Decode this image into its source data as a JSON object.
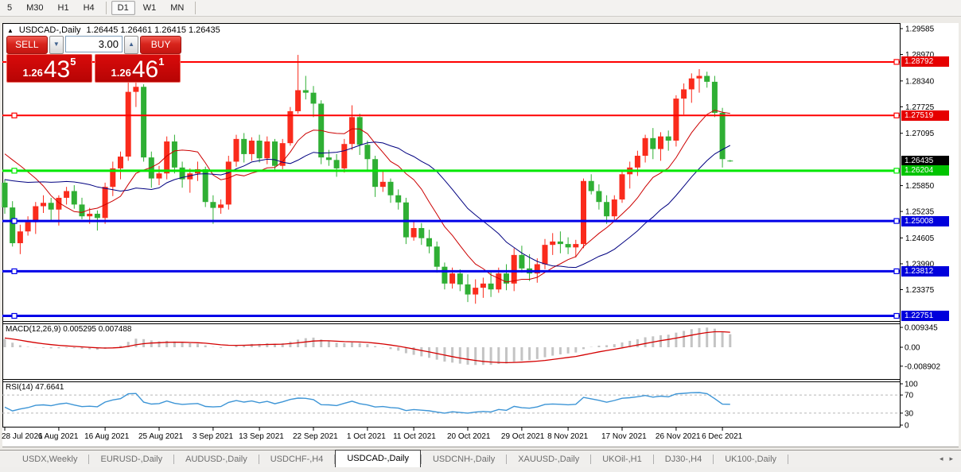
{
  "toolbar": {
    "timeframes": [
      {
        "label": "5",
        "active": false
      },
      {
        "label": "M30",
        "active": false
      },
      {
        "label": "H1",
        "active": false
      },
      {
        "label": "H4",
        "active": false
      },
      {
        "label": "D1",
        "active": true
      },
      {
        "label": "W1",
        "active": false
      },
      {
        "label": "MN",
        "active": false
      }
    ]
  },
  "chart_header": {
    "collapse_icon": "▲",
    "symbol_title": "USDCAD-,Daily",
    "ohlc": "1.26445 1.26461 1.26415 1.26435"
  },
  "trade_panel": {
    "sell_label": "SELL",
    "buy_label": "BUY",
    "volume": "3.00",
    "spin_down_icon": "▼",
    "spin_up_icon": "▲",
    "bid": {
      "small": "1.26",
      "big": "43",
      "sup": "5"
    },
    "ask": {
      "small": "1.26",
      "big": "46",
      "sup": "1"
    }
  },
  "indicator_labels": {
    "macd": "MACD(12,26,9) 0.005295 0.007488",
    "rsi": "RSI(14) 47.6641"
  },
  "tabs": {
    "scroll_left": "◂",
    "scroll_right": "▸",
    "items": [
      {
        "label": "USDX,Weekly",
        "active": false
      },
      {
        "label": "EURUSD-,Daily",
        "active": false
      },
      {
        "label": "AUDUSD-,Daily",
        "active": false
      },
      {
        "label": "USDCHF-,H4",
        "active": false
      },
      {
        "label": "USDCAD-,Daily",
        "active": true
      },
      {
        "label": "USDCNH-,Daily",
        "active": false
      },
      {
        "label": "XAUUSD-,Daily",
        "active": false
      },
      {
        "label": "UKOil-,H1",
        "active": false
      },
      {
        "label": "DJ30-,H4",
        "active": false
      },
      {
        "label": "UK100-,Daily",
        "active": false
      }
    ]
  },
  "chart_data": {
    "type": "candlestick",
    "symbol": "USDCAD-",
    "timeframe": "Daily",
    "current_ohlc": {
      "open": 1.26445,
      "high": 1.26461,
      "low": 1.26415,
      "close": 1.26435
    },
    "colors": {
      "up": "#FA2B1C",
      "down": "#2FAF34",
      "frame": "#000000"
    },
    "price_axis_ticks": [
      "1.29585",
      "1.28970",
      "1.28340",
      "1.27725",
      "1.27095",
      "1.25850",
      "1.25235",
      "1.24605",
      "1.23990",
      "1.23375"
    ],
    "price_badges": [
      {
        "text": "1.28792",
        "price": 1.28792,
        "color": "#E60000"
      },
      {
        "text": "1.27519",
        "price": 1.27519,
        "color": "#E60000"
      },
      {
        "text": "1.26435",
        "price": 1.26435,
        "color": "#000000"
      },
      {
        "text": "1.26204",
        "price": 1.26204,
        "color": "#00C400"
      },
      {
        "text": "1.25008",
        "price": 1.25008,
        "color": "#0000DC"
      },
      {
        "text": "1.23812",
        "price": 1.23812,
        "color": "#0000DC"
      },
      {
        "text": "1.22751",
        "price": 1.22751,
        "color": "#0000DC"
      }
    ],
    "horizontal_lines": [
      {
        "price": 1.28792,
        "color": "#FF0000",
        "width": 2
      },
      {
        "price": 1.27519,
        "color": "#FF0000",
        "width": 2
      },
      {
        "price": 1.26204,
        "color": "#00E800",
        "width": 3
      },
      {
        "price": 1.25008,
        "color": "#0000E8",
        "width": 3
      },
      {
        "price": 1.23812,
        "color": "#0000E8",
        "width": 3
      },
      {
        "price": 1.22751,
        "color": "#0000E8",
        "width": 3
      }
    ],
    "moving_averages": [
      {
        "period": 10,
        "color": "#CC0000"
      },
      {
        "period": 20,
        "color": "#000080"
      }
    ],
    "macd": {
      "params": "12,26,9",
      "value": 0.005295,
      "signal_value": 0.007488,
      "axis_ticks": [
        "0.009345",
        "0.00",
        "-0.008902"
      ],
      "bar_color": "#C4C4C4",
      "signal_color": "#D40000"
    },
    "rsi": {
      "period": 14,
      "value": 47.6641,
      "axis_ticks": [
        "100",
        "70",
        "30",
        "0"
      ],
      "levels": [
        70,
        30
      ],
      "color": "#3D95D6",
      "level_color": "#B8B8B8"
    },
    "x_labels": [
      {
        "index": 0,
        "text": "28 Jul 2021"
      },
      {
        "index": 7,
        "text": "6 Aug 2021"
      },
      {
        "index": 13,
        "text": "16 Aug 2021"
      },
      {
        "index": 20,
        "text": "25 Aug 2021"
      },
      {
        "index": 27,
        "text": "3 Sep 2021"
      },
      {
        "index": 33,
        "text": "13 Sep 2021"
      },
      {
        "index": 40,
        "text": "22 Sep 2021"
      },
      {
        "index": 47,
        "text": "1 Oct 2021"
      },
      {
        "index": 53,
        "text": "11 Oct 2021"
      },
      {
        "index": 60,
        "text": "20 Oct 2021"
      },
      {
        "index": 67,
        "text": "29 Oct 2021"
      },
      {
        "index": 73,
        "text": "8 Nov 2021"
      },
      {
        "index": 80,
        "text": "17 Nov 2021"
      },
      {
        "index": 87,
        "text": "26 Nov 2021"
      },
      {
        "index": 93,
        "text": "6 Dec 2021"
      }
    ],
    "dates": [
      "28 Jul",
      "29 Jul",
      "30 Jul",
      "2 Aug",
      "3 Aug",
      "4 Aug",
      "5 Aug",
      "6 Aug",
      "9 Aug",
      "10 Aug",
      "11 Aug",
      "12 Aug",
      "13 Aug",
      "16 Aug",
      "17 Aug",
      "18 Aug",
      "19 Aug",
      "20 Aug",
      "23 Aug",
      "24 Aug",
      "25 Aug",
      "26 Aug",
      "27 Aug",
      "30 Aug",
      "31 Aug",
      "1 Sep",
      "2 Sep",
      "3 Sep",
      "6 Sep",
      "7 Sep",
      "8 Sep",
      "9 Sep",
      "10 Sep",
      "13 Sep",
      "14 Sep",
      "15 Sep",
      "16 Sep",
      "17 Sep",
      "20 Sep",
      "21 Sep",
      "22 Sep",
      "23 Sep",
      "24 Sep",
      "27 Sep",
      "28 Sep",
      "29 Sep",
      "30 Sep",
      "1 Oct",
      "4 Oct",
      "5 Oct",
      "6 Oct",
      "7 Oct",
      "8 Oct",
      "11 Oct",
      "12 Oct",
      "13 Oct",
      "14 Oct",
      "15 Oct",
      "18 Oct",
      "19 Oct",
      "20 Oct",
      "21 Oct",
      "22 Oct",
      "25 Oct",
      "26 Oct",
      "27 Oct",
      "28 Oct",
      "29 Oct",
      "1 Nov",
      "2 Nov",
      "3 Nov",
      "4 Nov",
      "5 Nov",
      "8 Nov",
      "9 Nov",
      "10 Nov",
      "11 Nov",
      "12 Nov",
      "15 Nov",
      "16 Nov",
      "17 Nov",
      "18 Nov",
      "19 Nov",
      "22 Nov",
      "23 Nov",
      "24 Nov",
      "25 Nov",
      "26 Nov",
      "29 Nov",
      "30 Nov",
      "1 Dec",
      "2 Dec",
      "3 Dec",
      "6 Dec",
      "7 Dec"
    ],
    "indicator_warmup_closes": [
      1.2482,
      1.2476,
      1.2488,
      1.2495,
      1.249,
      1.2502,
      1.2512,
      1.2506,
      1.2518,
      1.253,
      1.2524,
      1.2536,
      1.2545,
      1.254,
      1.2552,
      1.256,
      1.2572,
      1.259,
      1.2615,
      1.2648,
      1.2688,
      1.2725,
      1.2758,
      1.2722,
      1.2684,
      1.2642
    ],
    "candles": [
      [
        1.2592,
        1.26,
        1.2518,
        1.2533
      ],
      [
        1.2533,
        1.2548,
        1.244,
        1.2448
      ],
      [
        1.2448,
        1.2492,
        1.2422,
        1.2476
      ],
      [
        1.2476,
        1.2512,
        1.2466,
        1.2498
      ],
      [
        1.2498,
        1.2546,
        1.247,
        1.2536
      ],
      [
        1.2536,
        1.2562,
        1.252,
        1.2544
      ],
      [
        1.2544,
        1.2556,
        1.25,
        1.2528
      ],
      [
        1.2528,
        1.2562,
        1.249,
        1.2556
      ],
      [
        1.2556,
        1.2582,
        1.254,
        1.2572
      ],
      [
        1.2572,
        1.2586,
        1.253,
        1.254
      ],
      [
        1.254,
        1.2556,
        1.2505,
        1.2512
      ],
      [
        1.2512,
        1.2532,
        1.2494,
        1.2518
      ],
      [
        1.2518,
        1.2526,
        1.2478,
        1.2508
      ],
      [
        1.2508,
        1.2592,
        1.2494,
        1.2582
      ],
      [
        1.2582,
        1.2642,
        1.256,
        1.2626
      ],
      [
        1.2626,
        1.2666,
        1.26,
        1.2654
      ],
      [
        1.2654,
        1.2832,
        1.2644,
        1.2808
      ],
      [
        1.2808,
        1.283,
        1.2772,
        1.282
      ],
      [
        1.282,
        1.2826,
        1.2642,
        1.2652
      ],
      [
        1.2652,
        1.2666,
        1.258,
        1.2602
      ],
      [
        1.2602,
        1.2632,
        1.2586,
        1.2614
      ],
      [
        1.2614,
        1.2702,
        1.26,
        1.269
      ],
      [
        1.269,
        1.2706,
        1.2614,
        1.2628
      ],
      [
        1.2628,
        1.2642,
        1.258,
        1.26
      ],
      [
        1.26,
        1.2626,
        1.2568,
        1.2614
      ],
      [
        1.2614,
        1.2642,
        1.2596,
        1.2624
      ],
      [
        1.2624,
        1.263,
        1.2534,
        1.2546
      ],
      [
        1.2546,
        1.2562,
        1.2494,
        1.2532
      ],
      [
        1.2532,
        1.2552,
        1.2518,
        1.254
      ],
      [
        1.254,
        1.2656,
        1.2528,
        1.2642
      ],
      [
        1.2642,
        1.2706,
        1.263,
        1.2696
      ],
      [
        1.2696,
        1.271,
        1.264,
        1.266
      ],
      [
        1.266,
        1.27,
        1.2644,
        1.2692
      ],
      [
        1.2692,
        1.2706,
        1.264,
        1.265
      ],
      [
        1.265,
        1.2702,
        1.2636,
        1.269
      ],
      [
        1.269,
        1.2696,
        1.2618,
        1.2632
      ],
      [
        1.2632,
        1.2696,
        1.2624,
        1.2686
      ],
      [
        1.2686,
        1.2772,
        1.268,
        1.2762
      ],
      [
        1.2762,
        1.2896,
        1.2756,
        1.2812
      ],
      [
        1.2812,
        1.2846,
        1.279,
        1.2806
      ],
      [
        1.2806,
        1.2822,
        1.2748,
        1.278
      ],
      [
        1.278,
        1.2788,
        1.2636,
        1.2652
      ],
      [
        1.2652,
        1.267,
        1.2632,
        1.2646
      ],
      [
        1.2646,
        1.266,
        1.2606,
        1.2626
      ],
      [
        1.2626,
        1.2696,
        1.2616,
        1.2684
      ],
      [
        1.2684,
        1.2776,
        1.267,
        1.2748
      ],
      [
        1.2748,
        1.2756,
        1.2658,
        1.2682
      ],
      [
        1.2682,
        1.2692,
        1.2618,
        1.2648
      ],
      [
        1.2648,
        1.2656,
        1.2558,
        1.2582
      ],
      [
        1.2582,
        1.2622,
        1.257,
        1.2594
      ],
      [
        1.2594,
        1.2602,
        1.2544,
        1.2562
      ],
      [
        1.2562,
        1.2576,
        1.2528,
        1.2545
      ],
      [
        1.2545,
        1.2556,
        1.2446,
        1.2462
      ],
      [
        1.2462,
        1.2502,
        1.2454,
        1.2484
      ],
      [
        1.2484,
        1.2496,
        1.2444,
        1.246
      ],
      [
        1.246,
        1.248,
        1.2424,
        1.244
      ],
      [
        1.244,
        1.2452,
        1.2378,
        1.2392
      ],
      [
        1.2392,
        1.2402,
        1.2338,
        1.2352
      ],
      [
        1.2352,
        1.239,
        1.234,
        1.2376
      ],
      [
        1.2376,
        1.2386,
        1.2334,
        1.235
      ],
      [
        1.235,
        1.2374,
        1.2308,
        1.2326
      ],
      [
        1.2326,
        1.2362,
        1.2304,
        1.2342
      ],
      [
        1.2342,
        1.2366,
        1.2318,
        1.2352
      ],
      [
        1.2352,
        1.238,
        1.232,
        1.2338
      ],
      [
        1.2338,
        1.239,
        1.233,
        1.2376
      ],
      [
        1.2376,
        1.2398,
        1.2336,
        1.2352
      ],
      [
        1.2352,
        1.2436,
        1.2334,
        1.242
      ],
      [
        1.242,
        1.2442,
        1.2378,
        1.2388
      ],
      [
        1.2388,
        1.2422,
        1.2358,
        1.2376
      ],
      [
        1.2376,
        1.2412,
        1.2354,
        1.2398
      ],
      [
        1.2398,
        1.2458,
        1.2386,
        1.2444
      ],
      [
        1.2444,
        1.2472,
        1.242,
        1.2452
      ],
      [
        1.2452,
        1.2476,
        1.2424,
        1.2446
      ],
      [
        1.2446,
        1.2462,
        1.2422,
        1.2438
      ],
      [
        1.2438,
        1.2456,
        1.2414,
        1.2446
      ],
      [
        1.2446,
        1.2602,
        1.2436,
        1.2596
      ],
      [
        1.2596,
        1.2612,
        1.2564,
        1.2572
      ],
      [
        1.2572,
        1.2588,
        1.2528,
        1.2546
      ],
      [
        1.2546,
        1.2562,
        1.2494,
        1.2512
      ],
      [
        1.2512,
        1.2562,
        1.25,
        1.2552
      ],
      [
        1.2552,
        1.2622,
        1.2544,
        1.2612
      ],
      [
        1.2612,
        1.2642,
        1.2578,
        1.2628
      ],
      [
        1.2628,
        1.2668,
        1.2608,
        1.2656
      ],
      [
        1.2656,
        1.2706,
        1.264,
        1.2698
      ],
      [
        1.2698,
        1.2722,
        1.2648,
        1.2672
      ],
      [
        1.2672,
        1.2712,
        1.2644,
        1.2702
      ],
      [
        1.2702,
        1.2716,
        1.2668,
        1.2692
      ],
      [
        1.2692,
        1.28,
        1.2678,
        1.2792
      ],
      [
        1.2792,
        1.2828,
        1.2754,
        1.2814
      ],
      [
        1.2814,
        1.2852,
        1.2782,
        1.284
      ],
      [
        1.284,
        1.2862,
        1.2806,
        1.2846
      ],
      [
        1.2846,
        1.2856,
        1.2818,
        1.2832
      ],
      [
        1.2832,
        1.2846,
        1.2748,
        1.2758
      ],
      [
        1.2758,
        1.277,
        1.2628,
        1.2648
      ],
      [
        1.26445,
        1.26461,
        1.26415,
        1.26435
      ]
    ]
  }
}
